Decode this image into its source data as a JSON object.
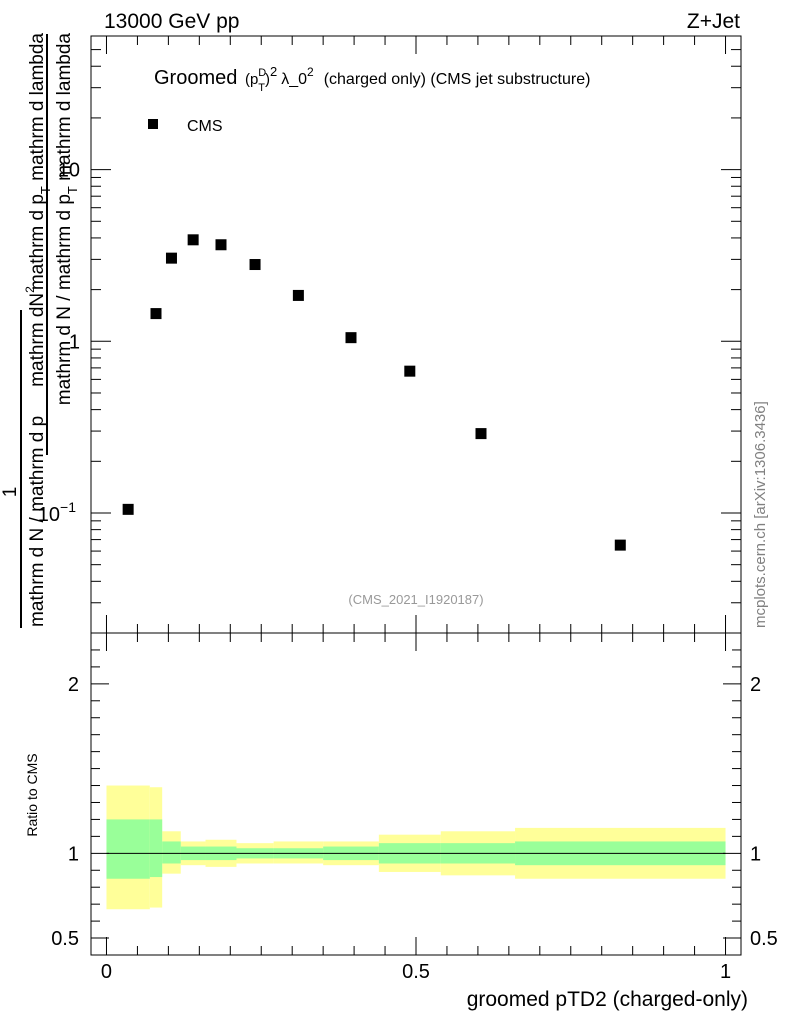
{
  "header": {
    "left": "13000 GeV pp",
    "right": "Z+Jet"
  },
  "title": {
    "pre": "Groomed",
    "p": "p",
    "sup_d": "D",
    "sub_t": "T",
    "sup_2": "2",
    "lambda": "λ_0",
    "lambda_sup": "2",
    "post": "(charged only) (CMS jet substructure)"
  },
  "legend": {
    "label": "CMS"
  },
  "y_label": {
    "numerator": "mathrm dN",
    "numerator_sup": "2",
    "num_part2": "mathrm d p",
    "num_sub": "T",
    "num_part3": " mathrm d lambda",
    "one": "1",
    "denominator": "mathrm d N / mathrm d p",
    "den_sub": "T"
  },
  "ratio_label": "Ratio to CMS",
  "x_label": "groomed pTD2 (charged-only)",
  "analysis_tag": "(CMS_2021_I1920187)",
  "side_label": "mcplots.cern.ch [arXiv:1306.3436]",
  "chart_data": {
    "type": "scatter",
    "xlim": [
      -0.025,
      1.025
    ],
    "main": {
      "yscale": "log",
      "ylim": [
        0.02,
        60
      ],
      "major_ticks": [
        {
          "value": 0.1,
          "base": "10",
          "exp": "−1"
        },
        {
          "value": 1,
          "label": "1"
        },
        {
          "value": 10,
          "label": "10"
        }
      ]
    },
    "ratio": {
      "ylim": [
        0.4,
        2.3
      ],
      "ticks": [
        {
          "value": 0.5,
          "label": "0.5"
        },
        {
          "value": 1,
          "label": "1"
        },
        {
          "value": 2,
          "label": "2"
        }
      ]
    },
    "x_ticks": [
      {
        "value": 0,
        "label": "0"
      },
      {
        "value": 0.5,
        "label": "0.5"
      },
      {
        "value": 1,
        "label": "1"
      }
    ],
    "series": [
      {
        "name": "CMS",
        "color": "#000000",
        "x": [
          0.035,
          0.08,
          0.105,
          0.14,
          0.185,
          0.24,
          0.31,
          0.395,
          0.49,
          0.605,
          0.83
        ],
        "y": [
          0.105,
          1.45,
          3.05,
          3.9,
          3.65,
          2.8,
          1.85,
          1.05,
          0.67,
          0.29,
          0.065
        ]
      }
    ],
    "ratio_bands": {
      "inner_color": "#99ff99",
      "outer_color": "#ffff99",
      "bins": [
        {
          "x0": 0.0,
          "x1": 0.07,
          "in_lo": 0.85,
          "in_hi": 1.2,
          "out_lo": 0.67,
          "out_hi": 1.4
        },
        {
          "x0": 0.07,
          "x1": 0.09,
          "in_lo": 0.86,
          "in_hi": 1.2,
          "out_lo": 0.68,
          "out_hi": 1.39
        },
        {
          "x0": 0.09,
          "x1": 0.12,
          "in_lo": 0.94,
          "in_hi": 1.07,
          "out_lo": 0.88,
          "out_hi": 1.13
        },
        {
          "x0": 0.12,
          "x1": 0.16,
          "in_lo": 0.96,
          "in_hi": 1.04,
          "out_lo": 0.93,
          "out_hi": 1.07
        },
        {
          "x0": 0.16,
          "x1": 0.21,
          "in_lo": 0.96,
          "in_hi": 1.04,
          "out_lo": 0.92,
          "out_hi": 1.08
        },
        {
          "x0": 0.21,
          "x1": 0.27,
          "in_lo": 0.97,
          "in_hi": 1.03,
          "out_lo": 0.94,
          "out_hi": 1.06
        },
        {
          "x0": 0.27,
          "x1": 0.35,
          "in_lo": 0.97,
          "in_hi": 1.03,
          "out_lo": 0.94,
          "out_hi": 1.07
        },
        {
          "x0": 0.35,
          "x1": 0.44,
          "in_lo": 0.96,
          "in_hi": 1.04,
          "out_lo": 0.93,
          "out_hi": 1.07
        },
        {
          "x0": 0.44,
          "x1": 0.54,
          "in_lo": 0.94,
          "in_hi": 1.06,
          "out_lo": 0.89,
          "out_hi": 1.11
        },
        {
          "x0": 0.54,
          "x1": 0.66,
          "in_lo": 0.94,
          "in_hi": 1.06,
          "out_lo": 0.87,
          "out_hi": 1.13
        },
        {
          "x0": 0.66,
          "x1": 1.0,
          "in_lo": 0.93,
          "in_hi": 1.07,
          "out_lo": 0.85,
          "out_hi": 1.15
        }
      ]
    }
  }
}
